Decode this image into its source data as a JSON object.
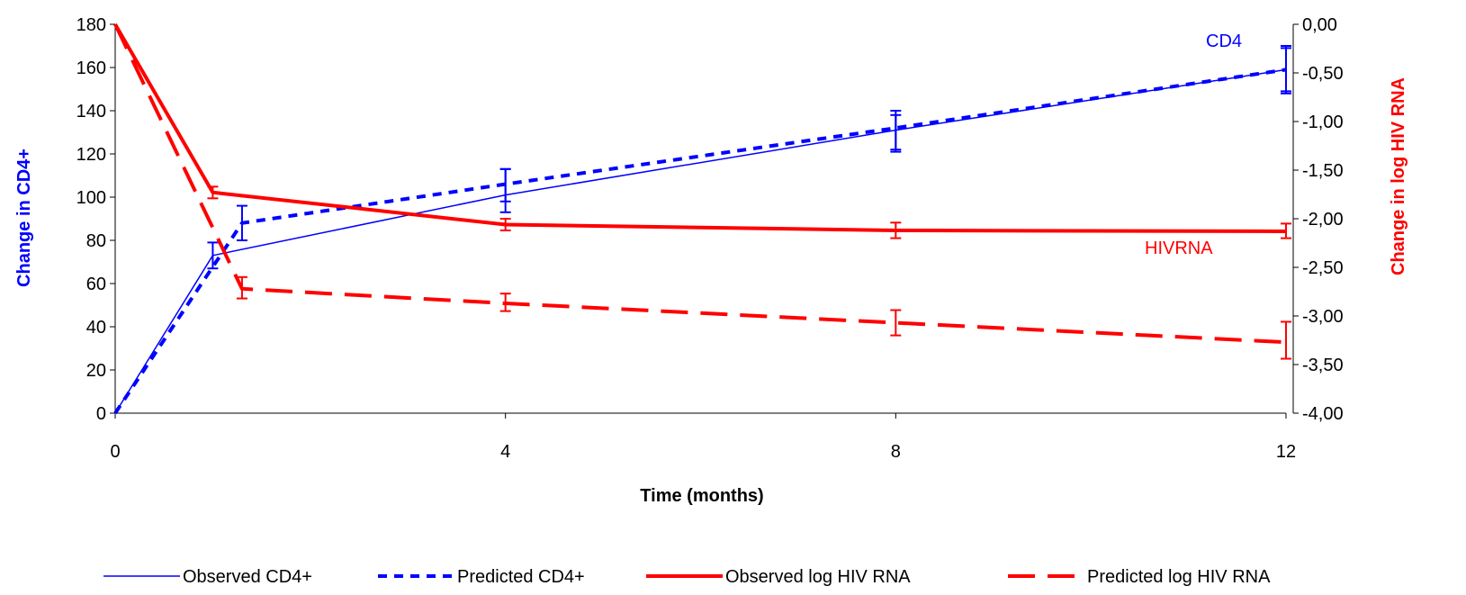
{
  "chart_data": {
    "type": "line",
    "title": "",
    "xlabel": "Time (months)",
    "ylabel_left": "Change in CD4+",
    "ylabel_right": "Change in log HIV RNA",
    "xlim": [
      0,
      12
    ],
    "x_ticks": [
      "0",
      "4",
      "8",
      "12"
    ],
    "ylim_left": [
      0,
      180
    ],
    "y_left_ticks": [
      "0",
      "20",
      "40",
      "60",
      "80",
      "100",
      "120",
      "140",
      "160",
      "180"
    ],
    "ylim_right": [
      -4.0,
      0.0
    ],
    "y_right_ticks": [
      "0,00",
      "-0,50",
      "-1,00",
      "-1,50",
      "-2,00",
      "-2,50",
      "-3,00",
      "-3,50",
      "-4,00"
    ],
    "grid": false,
    "legend_placement": "bottom",
    "annotations": [
      {
        "text": "CD4",
        "color": "#0000ff"
      },
      {
        "text": "HIVRNA",
        "color": "#ff0000"
      }
    ],
    "series": [
      {
        "name": "Observed CD4+",
        "axis": "left",
        "color": "#0000ff",
        "style": "solid-thin",
        "x": [
          0,
          1,
          4,
          8,
          12
        ],
        "y": [
          0,
          73,
          101,
          131,
          159
        ],
        "errors": [
          null,
          [
            67,
            79
          ],
          [
            93,
            113
          ],
          [
            122,
            140
          ],
          [
            148,
            170
          ]
        ]
      },
      {
        "name": "Predicted CD4+",
        "axis": "left",
        "color": "#0000ff",
        "style": "dotted",
        "x": [
          0,
          1.3,
          4,
          8,
          12
        ],
        "y": [
          0,
          88,
          106,
          132,
          159
        ],
        "errors": [
          null,
          [
            80,
            96
          ],
          [
            98,
            113
          ],
          [
            121,
            138
          ],
          [
            149,
            169
          ]
        ]
      },
      {
        "name": "Observed log HIV RNA",
        "axis": "right",
        "color": "#ff0000",
        "style": "solid-thick",
        "x": [
          0,
          1,
          4,
          8,
          12
        ],
        "y": [
          0.0,
          -1.73,
          -2.06,
          -2.12,
          -2.13
        ],
        "errors": [
          null,
          [
            -1.79,
            -1.67
          ],
          [
            -2.12,
            -2.0
          ],
          [
            -2.2,
            -2.04
          ],
          [
            -2.2,
            -2.05
          ]
        ]
      },
      {
        "name": "Predicted log HIV RNA",
        "axis": "right",
        "color": "#ff0000",
        "style": "dashed",
        "x": [
          0,
          1.3,
          4,
          8,
          12
        ],
        "y": [
          0.0,
          -2.72,
          -2.87,
          -3.07,
          -3.27
        ],
        "errors": [
          null,
          [
            -2.82,
            -2.6
          ],
          [
            -2.95,
            -2.77
          ],
          [
            -3.2,
            -2.94
          ],
          [
            -3.44,
            -3.06
          ]
        ]
      }
    ]
  }
}
